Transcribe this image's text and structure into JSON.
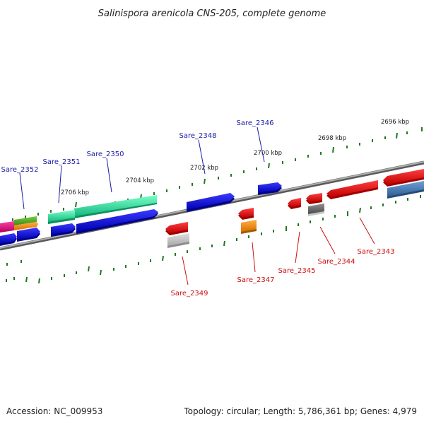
{
  "title": "Salinispora arenicola CNS-205, complete genome",
  "footer": {
    "accession": "Accession: NC_009953",
    "topology": "Topology: circular; Length: 5,786,361 bp; Genes: 4,979"
  },
  "scale_labels": [
    "2696 kbp",
    "2698 kbp",
    "2700 kbp",
    "2702 kbp",
    "2704 kbp",
    "2706 kbp"
  ],
  "gene_labels": {
    "forward": [
      "Sare_2346",
      "Sare_2348",
      "Sare_2350",
      "Sare_2351",
      "Sare_2352"
    ],
    "reverse": [
      "Sare_2343",
      "Sare_2344",
      "Sare_2345",
      "Sare_2347",
      "Sare_2349"
    ]
  },
  "colors": {
    "forward_label": "#1a1aa6",
    "reverse_label": "#cc1111",
    "tick": "#1f7a1f",
    "backbone": "#8a8a8a",
    "blue": "#1010e0",
    "red": "#ff1010",
    "teal": "#2ee6a0",
    "steel": "#4a7fb5",
    "orange": "#f08c00",
    "gray": "#6e6e6e",
    "magenta": "#e8007a"
  }
}
